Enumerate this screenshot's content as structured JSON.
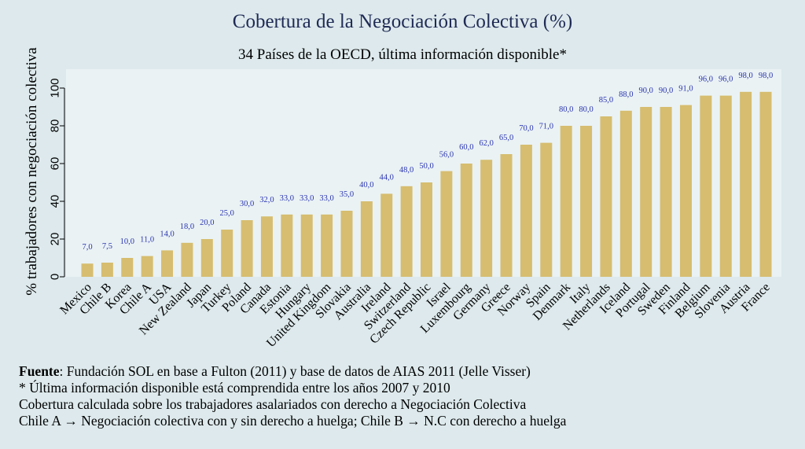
{
  "chart_data": {
    "type": "bar",
    "title": "Cobertura de la Negociación Colectiva (%)",
    "subtitle": "34 Países de la OECD, última información disponible*",
    "ylabel": "% trabajadores con negociación colectiva",
    "xlabel": "",
    "ylim": [
      0,
      110
    ],
    "yticks": [
      0,
      20,
      40,
      60,
      80,
      100
    ],
    "grid": false,
    "bar_color": "#d6bd6f",
    "label_color": "#2a35b0",
    "categories": [
      "Mexico",
      "Chile B",
      "Korea",
      "Chile A",
      "USA",
      "New Zealand",
      "Japan",
      "Turkey",
      "Poland",
      "Canada",
      "Estonia",
      "Hungary",
      "United Kingdom",
      "Slovakia",
      "Australia",
      "Ireland",
      "Switzerland",
      "Czech Republic",
      "Israel",
      "Luxembourg",
      "Germany",
      "Greece",
      "Norway",
      "Spain",
      "Denmark",
      "Italy",
      "Netherlands",
      "Iceland",
      "Portugal",
      "Sweden",
      "Finland",
      "Belgium",
      "Slovenia",
      "Austria",
      "France"
    ],
    "values": [
      7.0,
      7.5,
      10.0,
      11.0,
      14.0,
      18.0,
      20.0,
      25.0,
      30.0,
      32.0,
      33.0,
      33.0,
      33.0,
      35.0,
      40.0,
      44.0,
      48.0,
      50.0,
      56.0,
      60.0,
      62.0,
      65.0,
      70.0,
      71.0,
      80.0,
      80.0,
      85.0,
      88.0,
      90.0,
      90.0,
      91.0,
      96.0,
      96.0,
      98.0,
      98.0
    ],
    "data_labels": [
      "7,0",
      "7,5",
      "10,0",
      "11,0",
      "14,0",
      "18,0",
      "20,0",
      "25,0",
      "30,0",
      "32,0",
      "33,0",
      "33,0",
      "33,0",
      "35,0",
      "40,0",
      "44,0",
      "48,0",
      "50,0",
      "56,0",
      "60,0",
      "62,0",
      "65,0",
      "70,0",
      "71,0",
      "80,0",
      "80,0",
      "85,0",
      "88,0",
      "90,0",
      "90,0",
      "91,0",
      "96,0",
      "96,0",
      "98,0",
      "98,0"
    ]
  },
  "notes": {
    "source_label": "Fuente",
    "source_text": ": Fundación SOL en base a Fulton (2011) y base de datos de AIAS 2011 (Jelle Visser)",
    "line2": "* Última información disponible está comprendida entre los años 2007 y 2010",
    "line3": "Cobertura calculada sobre los trabajadores asalariados con derecho a Negociación Colectiva",
    "line4": "Chile A → Negociación colectiva con y sin derecho a huelga; Chile B → N.C con derecho a huelga"
  }
}
